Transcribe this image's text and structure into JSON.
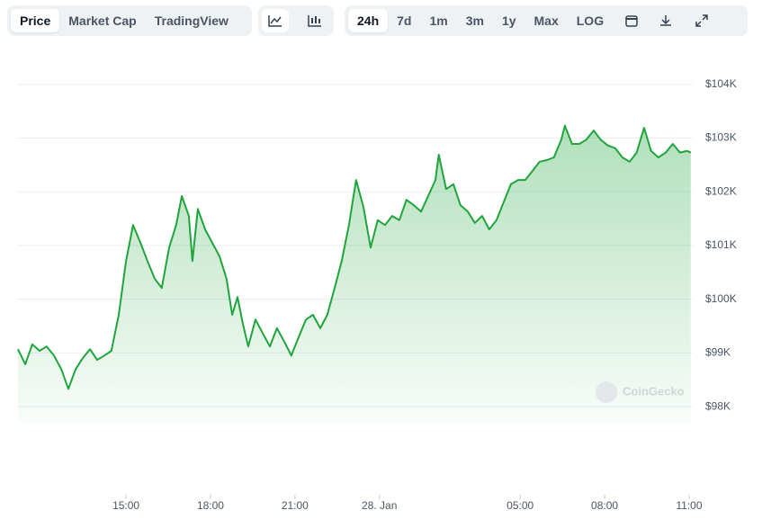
{
  "toolbar": {
    "views": [
      "Price",
      "Market Cap",
      "TradingView"
    ],
    "ranges": [
      "24h",
      "7d",
      "1m",
      "3m",
      "1y",
      "Max",
      "LOG"
    ]
  },
  "watermark": "CoinGecko",
  "chart_data": {
    "type": "area",
    "color": "#1fa53c",
    "grid": true,
    "xlim": [
      11.13,
      35.13
    ],
    "xticks": [
      {
        "value": 15,
        "label": "15:00"
      },
      {
        "value": 18,
        "label": "18:00"
      },
      {
        "value": 21,
        "label": "21:00"
      },
      {
        "value": 24,
        "label": "28. Jan"
      },
      {
        "value": 29,
        "label": "05:00"
      },
      {
        "value": 32,
        "label": "08:00"
      },
      {
        "value": 35,
        "label": "11:00"
      }
    ],
    "ylim": [
      97700,
      104900
    ],
    "yticks": [
      {
        "value": 98000,
        "label": "$98K"
      },
      {
        "value": 99000,
        "label": "$99K"
      },
      {
        "value": 100000,
        "label": "$100K"
      },
      {
        "value": 101000,
        "label": "$101K"
      },
      {
        "value": 102000,
        "label": "$102K"
      },
      {
        "value": 103000,
        "label": "$103K"
      },
      {
        "value": 104000,
        "label": "$104K"
      }
    ],
    "x": [
      11.16,
      11.42,
      11.67,
      11.93,
      12.18,
      12.44,
      12.7,
      12.95,
      13.21,
      13.46,
      13.72,
      13.97,
      14.23,
      14.48,
      14.74,
      15.0,
      15.25,
      15.51,
      15.76,
      16.02,
      16.27,
      16.53,
      16.78,
      16.98,
      17.23,
      17.36,
      17.55,
      17.81,
      18.06,
      18.32,
      18.57,
      18.77,
      18.96,
      19.15,
      19.34,
      19.6,
      19.85,
      20.11,
      20.36,
      20.62,
      20.87,
      21.13,
      21.39,
      21.64,
      21.9,
      22.15,
      22.41,
      22.66,
      22.92,
      23.17,
      23.43,
      23.69,
      23.94,
      24.2,
      24.45,
      24.71,
      24.96,
      25.22,
      25.48,
      25.73,
      25.99,
      26.11,
      26.37,
      26.63,
      26.88,
      27.14,
      27.39,
      27.65,
      27.9,
      28.16,
      28.41,
      28.67,
      28.93,
      29.18,
      29.44,
      29.69,
      29.95,
      30.2,
      30.46,
      30.59,
      30.84,
      31.1,
      31.35,
      31.61,
      31.86,
      32.12,
      32.38,
      32.63,
      32.89,
      33.14,
      33.4,
      33.65,
      33.91,
      34.17,
      34.42,
      34.68,
      34.93,
      35.06
    ],
    "values": [
      99070,
      98790,
      99160,
      99040,
      99120,
      98950,
      98700,
      98330,
      98700,
      98900,
      99070,
      98870,
      98950,
      99040,
      99710,
      100710,
      101380,
      101050,
      100710,
      100380,
      100210,
      100960,
      101380,
      101920,
      101550,
      100710,
      101680,
      101300,
      101050,
      100800,
      100380,
      99710,
      100040,
      99540,
      99120,
      99620,
      99370,
      99120,
      99460,
      99210,
      98950,
      99290,
      99620,
      99710,
      99460,
      99710,
      100210,
      100710,
      101380,
      102220,
      101720,
      100960,
      101470,
      101380,
      101550,
      101470,
      101850,
      101750,
      101630,
      101920,
      102220,
      102690,
      102050,
      102140,
      101750,
      101630,
      101420,
      101550,
      101300,
      101470,
      101800,
      102140,
      102220,
      102220,
      102390,
      102560,
      102590,
      102640,
      102970,
      103230,
      102890,
      102890,
      102970,
      103140,
      102970,
      102860,
      102810,
      102640,
      102560,
      102730,
      103190,
      102760,
      102640,
      102730,
      102890,
      102730,
      102760,
      102730
    ]
  }
}
